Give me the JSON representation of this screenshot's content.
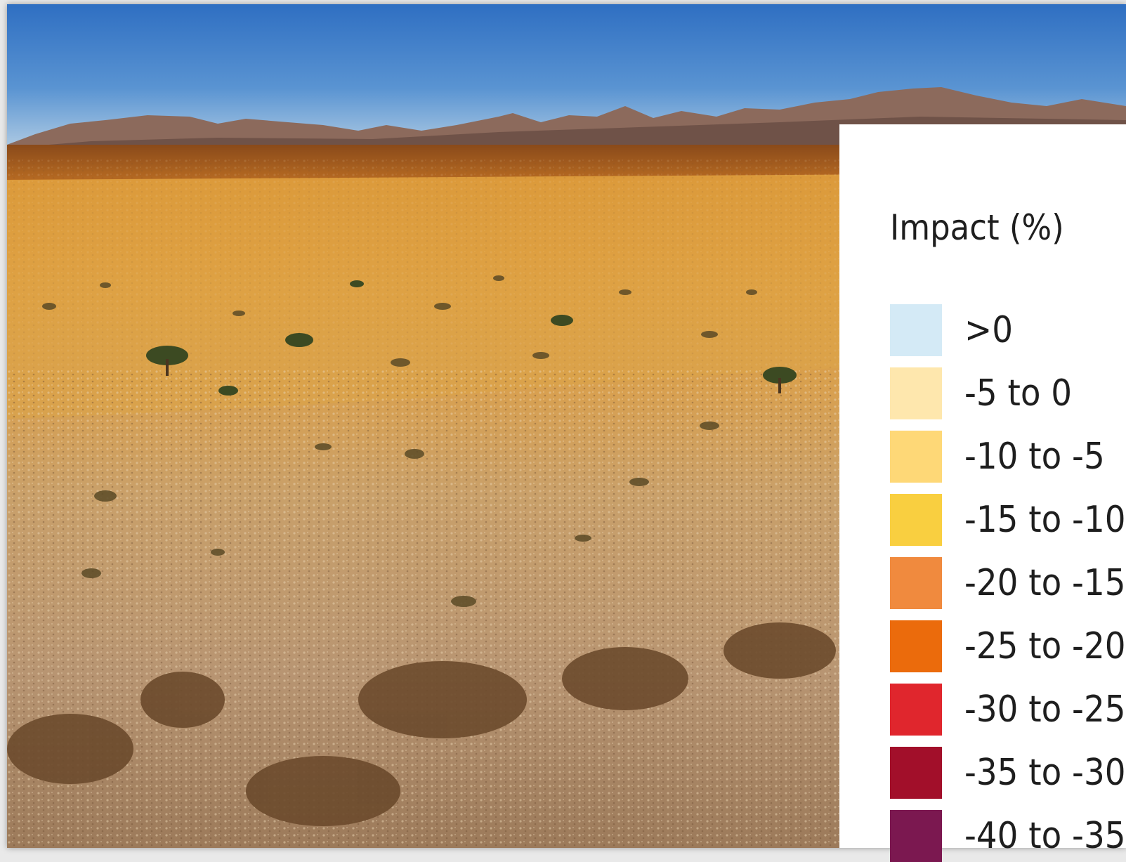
{
  "legend": {
    "title": "Impact (%)",
    "items": [
      {
        "label": ">0",
        "color": "#d4eaf6"
      },
      {
        "label": "-5 to 0",
        "color": "#fee7ad"
      },
      {
        "label": "-10 to -5",
        "color": "#fed877"
      },
      {
        "label": "-15 to -10",
        "color": "#f9cf40"
      },
      {
        "label": "-20 to -15",
        "color": "#f08a3e"
      },
      {
        "label": "-25 to -20",
        "color": "#eb6b0c"
      },
      {
        "label": "-30 to -25",
        "color": "#e0262d"
      },
      {
        "label": "-35 to -30",
        "color": "#a20f2a"
      },
      {
        "label": "-40 to -35",
        "color": "#7b1850"
      }
    ]
  }
}
